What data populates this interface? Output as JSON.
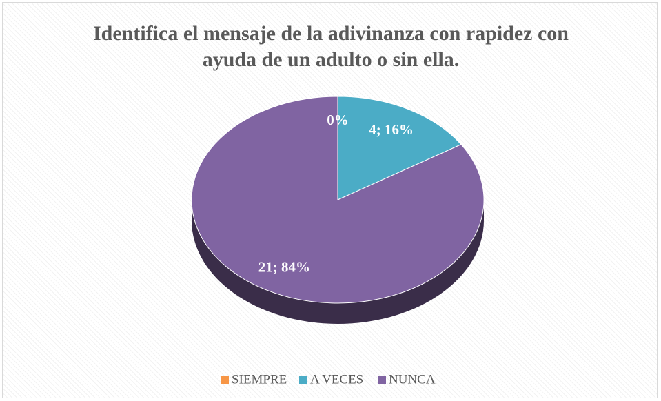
{
  "chart_data": {
    "type": "pie",
    "title": "Identifica el mensaje de la adivinanza con rapidez con ayuda de un adulto o sin ella.",
    "categories": [
      "SIEMPRE",
      "A VECES",
      "NUNCA"
    ],
    "values": [
      0,
      4,
      21
    ],
    "value_labels": [
      "0%",
      "4; 16%",
      "21; 84%"
    ],
    "colors": [
      "#f79646",
      "#4bacc6",
      "#8064a2"
    ],
    "legend": "bottom"
  }
}
